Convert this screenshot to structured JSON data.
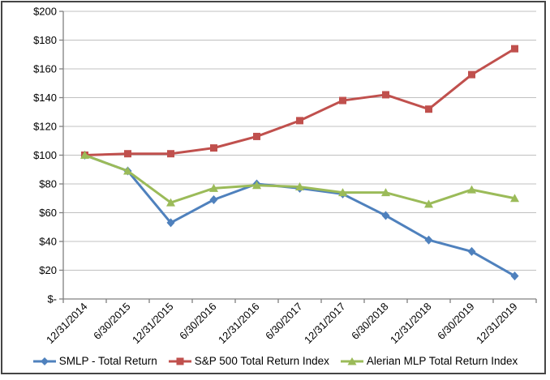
{
  "chart_data": {
    "type": "line",
    "title": "",
    "xlabel": "",
    "ylabel": "",
    "categories": [
      "12/31/2014",
      "6/30/2015",
      "12/31/2015",
      "6/30/2016",
      "12/31/2016",
      "6/30/2017",
      "12/31/2017",
      "6/30/2018",
      "12/31/2018",
      "6/30/2019",
      "12/31/2019"
    ],
    "series": [
      {
        "name": "SMLP - Total Return",
        "marker": "diamond",
        "color": "#4F81BD",
        "values": [
          100,
          89,
          53,
          69,
          80,
          77,
          73,
          58,
          41,
          33,
          16
        ]
      },
      {
        "name": "S&P 500 Total Return Index",
        "marker": "square",
        "color": "#C0504D",
        "values": [
          100,
          101,
          101,
          105,
          113,
          124,
          138,
          142,
          132,
          156,
          174
        ]
      },
      {
        "name": "Alerian MLP Total Return Index",
        "marker": "triangle",
        "color": "#9BBB59",
        "values": [
          100,
          89,
          67,
          77,
          79,
          78,
          74,
          74,
          66,
          76,
          70
        ]
      }
    ],
    "ylim": [
      0,
      200
    ],
    "ytick_step": 20,
    "ytick_labels": [
      "$-",
      "$20",
      "$40",
      "$60",
      "$80",
      "$100",
      "$120",
      "$140",
      "$160",
      "$180",
      "$200"
    ],
    "grid": true,
    "legend_position": "bottom"
  },
  "colors": {
    "background": "#FFFFFF",
    "frame_border": "#454545",
    "gridline": "#C0C0C0",
    "axis": "#808080",
    "text": "#000000"
  }
}
